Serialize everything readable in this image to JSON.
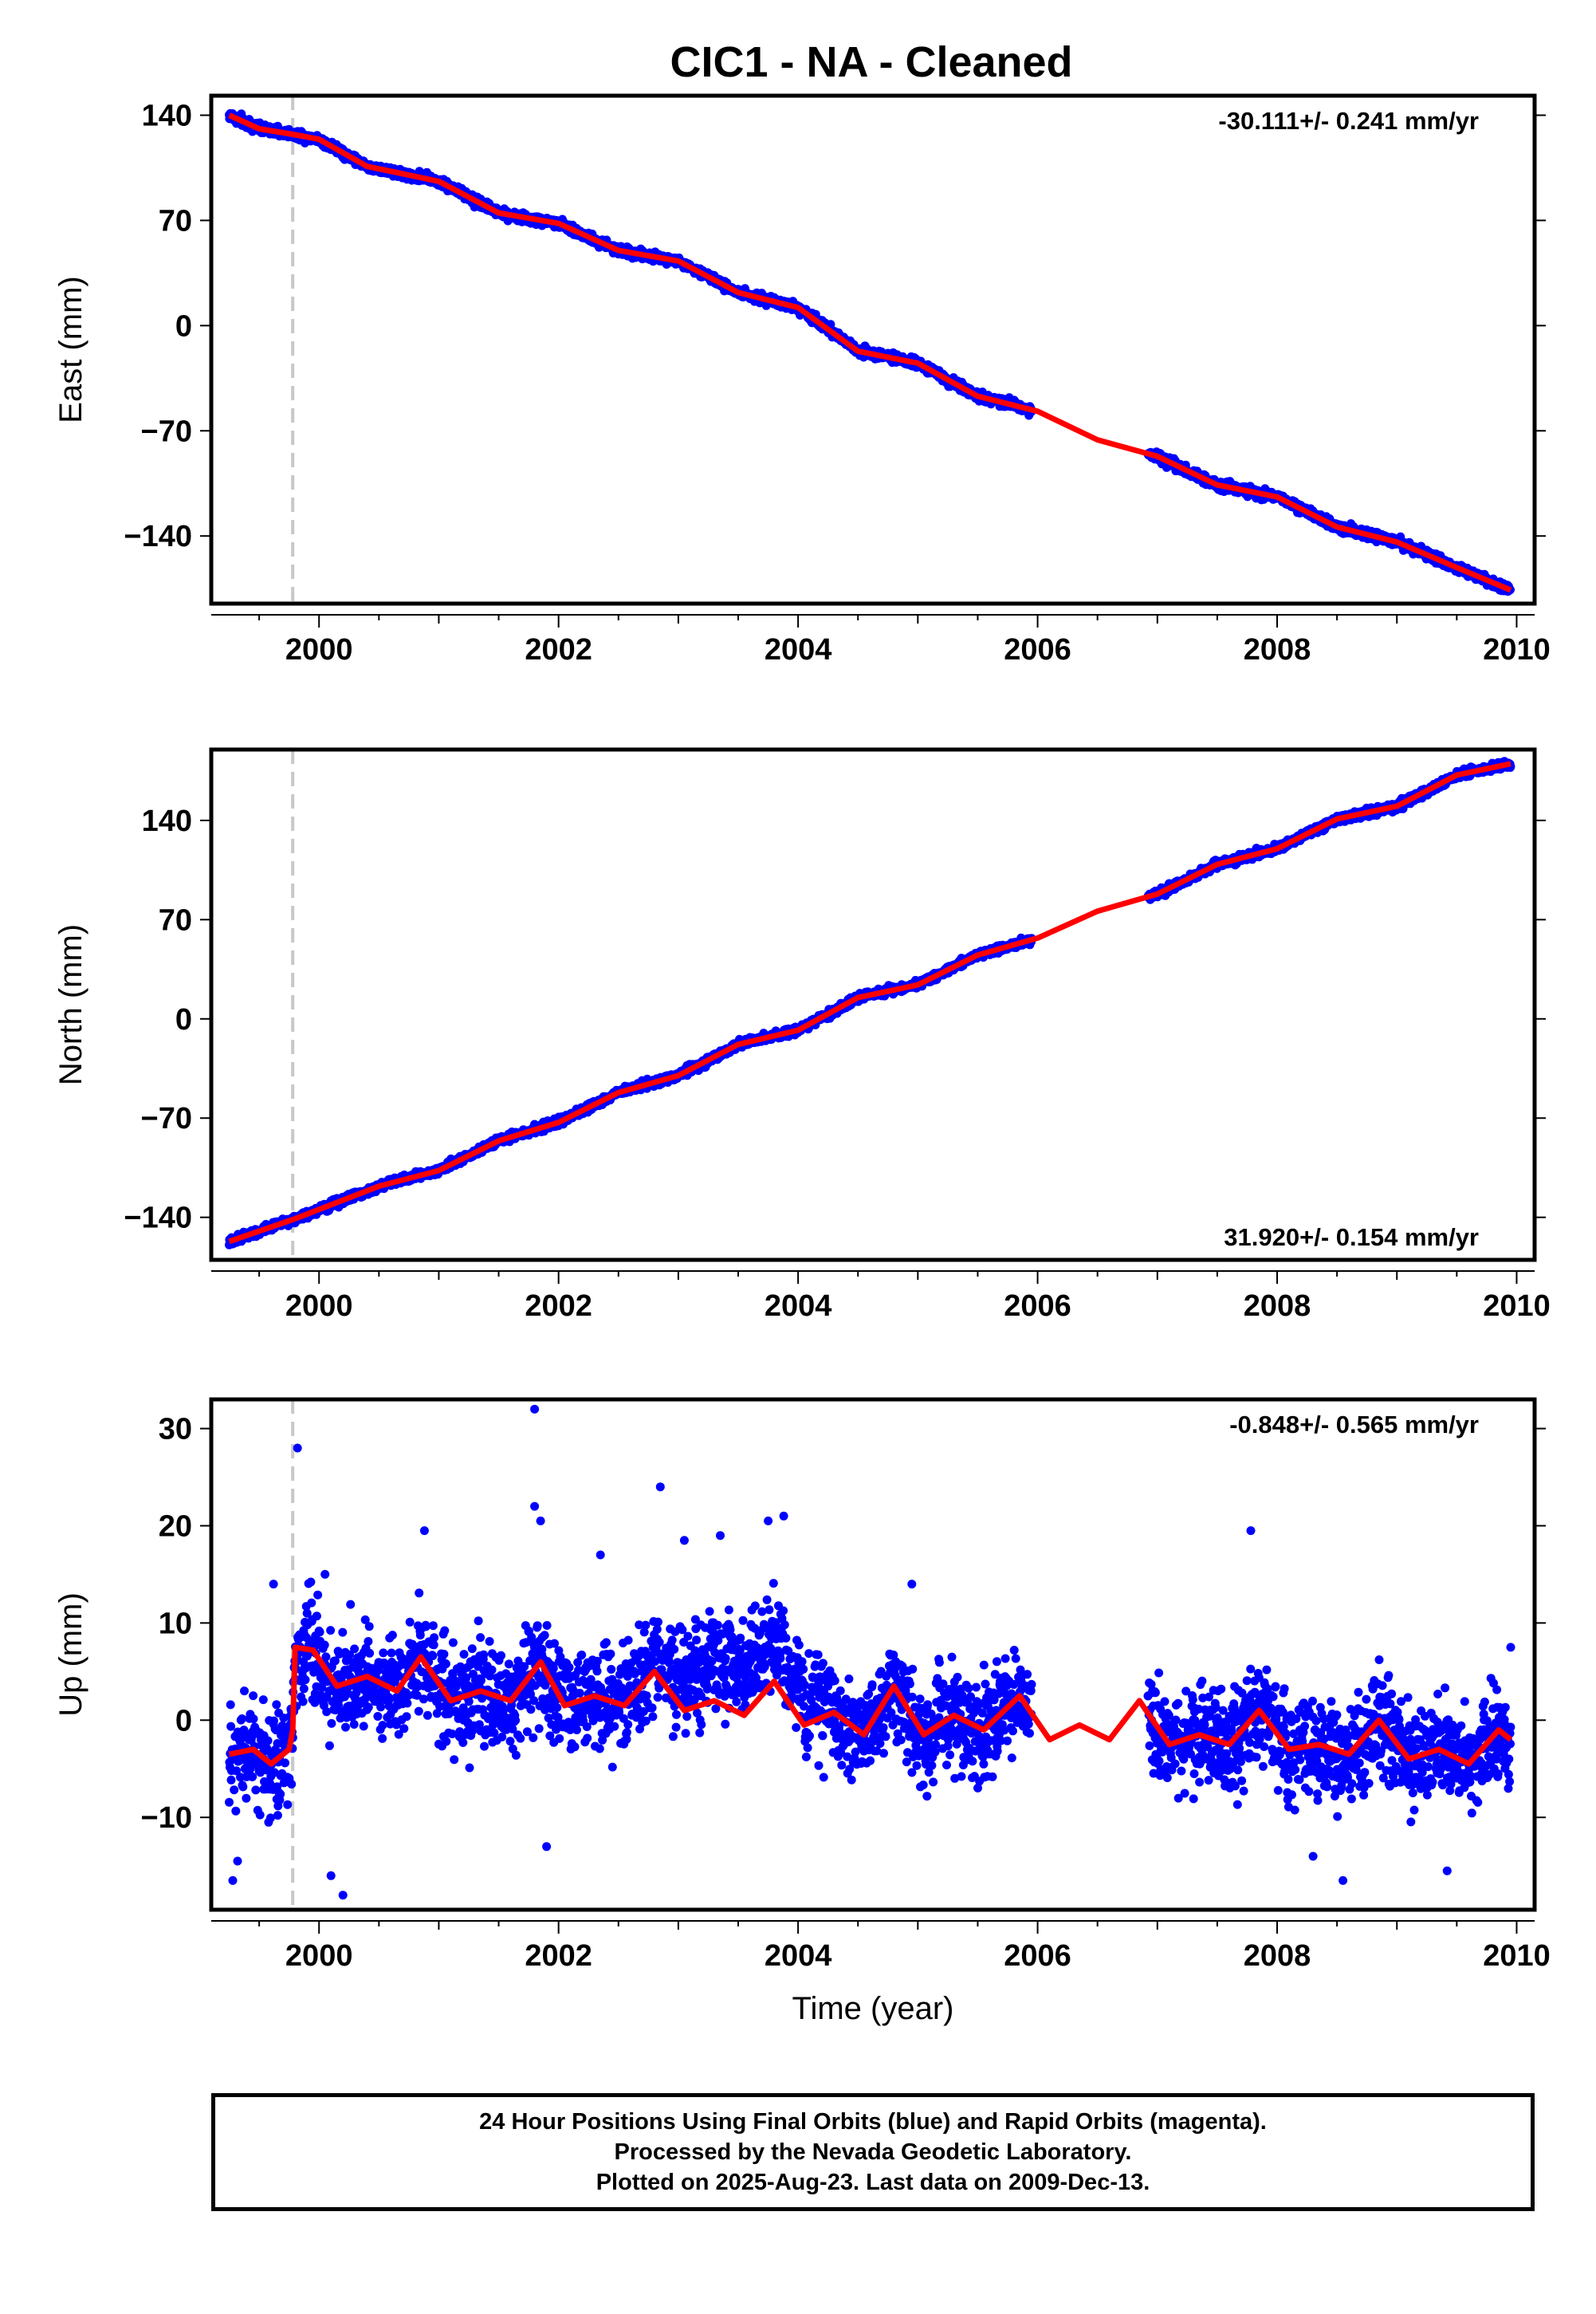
{
  "title": "CIC1  - NA - Cleaned",
  "footer": {
    "line1": "24 Hour Positions Using Final Orbits (blue) and Rapid Orbits (magenta).",
    "line2": "Processed by the Nevada Geodetic Laboratory.",
    "line3": "Plotted on 2025-Aug-23. Last data on 2009-Dec-13."
  },
  "colors": {
    "data": "#0000ff",
    "model": "#ff0000",
    "marker": "#c8c8c8"
  },
  "chart_data": [
    {
      "type": "scatter",
      "ylabel": "East (mm)",
      "xlabel": "",
      "xlim": [
        1999.1,
        2010.15
      ],
      "ylim": [
        -185,
        153
      ],
      "xticks": [
        2000,
        2002,
        2004,
        2006,
        2008,
        2010
      ],
      "yticks": [
        -140,
        -70,
        0,
        70,
        140
      ],
      "rate": "-30.111+/- 0.241 mm/yr",
      "rate_position": "top-right",
      "dashed_line_x": 1999.78,
      "gap": [
        2005.95,
        2006.92
      ],
      "noise": 2.2,
      "trend": [
        [
          1999.25,
          140
        ],
        [
          1999.5,
          131
        ],
        [
          1999.8,
          127
        ],
        [
          2000.0,
          124
        ],
        [
          2000.4,
          106
        ],
        [
          2001.0,
          96
        ],
        [
          2001.5,
          75
        ],
        [
          2002.0,
          68
        ],
        [
          2002.5,
          50
        ],
        [
          2003.0,
          43
        ],
        [
          2003.5,
          22
        ],
        [
          2004.0,
          12
        ],
        [
          2004.5,
          -17
        ],
        [
          2005.0,
          -25
        ],
        [
          2005.5,
          -47
        ],
        [
          2006.0,
          -57
        ],
        [
          2006.5,
          -76
        ],
        [
          2007.0,
          -87
        ],
        [
          2007.5,
          -106
        ],
        [
          2008.0,
          -114
        ],
        [
          2008.5,
          -134
        ],
        [
          2009.0,
          -144
        ],
        [
          2009.5,
          -161
        ],
        [
          2009.95,
          -176
        ]
      ]
    },
    {
      "type": "scatter",
      "ylabel": "North (mm)",
      "xlabel": "",
      "xlim": [
        1999.1,
        2010.15
      ],
      "ylim": [
        -170,
        190
      ],
      "xticks": [
        2000,
        2002,
        2004,
        2006,
        2008,
        2010
      ],
      "yticks": [
        -140,
        -70,
        0,
        70,
        140
      ],
      "rate": "31.920+/- 0.154 mm/yr",
      "rate_position": "bottom-right",
      "dashed_line_x": 1999.78,
      "gap": [
        2005.95,
        2006.92
      ],
      "noise": 2.0,
      "trend": [
        [
          1999.25,
          -157
        ],
        [
          1999.8,
          -141
        ],
        [
          2000.5,
          -118
        ],
        [
          2001.0,
          -107
        ],
        [
          2001.5,
          -86
        ],
        [
          2002.0,
          -73
        ],
        [
          2002.5,
          -52
        ],
        [
          2003.0,
          -40
        ],
        [
          2003.5,
          -18
        ],
        [
          2004.0,
          -8
        ],
        [
          2004.5,
          15
        ],
        [
          2005.0,
          24
        ],
        [
          2005.5,
          45
        ],
        [
          2006.0,
          57
        ],
        [
          2006.5,
          76
        ],
        [
          2007.0,
          88
        ],
        [
          2007.5,
          109
        ],
        [
          2008.0,
          120
        ],
        [
          2008.5,
          141
        ],
        [
          2009.0,
          150
        ],
        [
          2009.5,
          172
        ],
        [
          2009.95,
          180
        ]
      ]
    },
    {
      "type": "scatter",
      "ylabel": "Up (mm)",
      "xlabel": "Time (year)",
      "xlim": [
        1999.1,
        2010.15
      ],
      "ylim": [
        -19.5,
        33
      ],
      "xticks": [
        2000,
        2002,
        2004,
        2006,
        2008,
        2010
      ],
      "yticks": [
        -10,
        0,
        10,
        20,
        30
      ],
      "rate": "-0.848+/- 0.565 mm/yr",
      "rate_position": "top-right",
      "dashed_line_x": 1999.78,
      "gap": [
        2005.95,
        2006.92
      ],
      "noise": 3.6,
      "trend": [
        [
          1999.25,
          -3.5
        ],
        [
          1999.45,
          -3.0
        ],
        [
          1999.6,
          -4.5
        ],
        [
          1999.75,
          -3.0
        ],
        [
          1999.78,
          -1.0
        ],
        [
          1999.8,
          7.5
        ],
        [
          1999.95,
          7.2
        ],
        [
          2000.15,
          3.5
        ],
        [
          2000.4,
          4.5
        ],
        [
          2000.65,
          3.0
        ],
        [
          2000.85,
          6.5
        ],
        [
          2001.1,
          2.0
        ],
        [
          2001.35,
          3.0
        ],
        [
          2001.6,
          2.0
        ],
        [
          2001.85,
          6.0
        ],
        [
          2002.05,
          1.5
        ],
        [
          2002.3,
          2.5
        ],
        [
          2002.55,
          1.5
        ],
        [
          2002.8,
          5.0
        ],
        [
          2003.05,
          1.0
        ],
        [
          2003.3,
          2.0
        ],
        [
          2003.55,
          0.5
        ],
        [
          2003.8,
          4.0
        ],
        [
          2004.05,
          -0.5
        ],
        [
          2004.3,
          0.8
        ],
        [
          2004.55,
          -1.5
        ],
        [
          2004.8,
          3.5
        ],
        [
          2005.05,
          -1.5
        ],
        [
          2005.3,
          0.5
        ],
        [
          2005.55,
          -1.0
        ],
        [
          2005.85,
          2.5
        ],
        [
          2006.1,
          -2.0
        ],
        [
          2006.35,
          -0.5
        ],
        [
          2006.6,
          -2.0
        ],
        [
          2006.85,
          2.0
        ],
        [
          2007.1,
          -2.5
        ],
        [
          2007.35,
          -1.5
        ],
        [
          2007.6,
          -2.5
        ],
        [
          2007.85,
          1.0
        ],
        [
          2008.1,
          -3.0
        ],
        [
          2008.35,
          -2.5
        ],
        [
          2008.6,
          -3.5
        ],
        [
          2008.85,
          0.0
        ],
        [
          2009.1,
          -4.0
        ],
        [
          2009.35,
          -3.0
        ],
        [
          2009.6,
          -4.5
        ],
        [
          2009.85,
          -1.0
        ],
        [
          2009.95,
          -2.0
        ]
      ],
      "outliers": [
        [
          1999.28,
          -16.5
        ],
        [
          1999.32,
          -14.5
        ],
        [
          1999.62,
          14
        ],
        [
          1999.82,
          28
        ],
        [
          1999.9,
          11
        ],
        [
          2000.05,
          15
        ],
        [
          2000.1,
          -16
        ],
        [
          2000.2,
          -18
        ],
        [
          2000.88,
          19.5
        ],
        [
          2001.8,
          32
        ],
        [
          2001.8,
          22
        ],
        [
          2001.85,
          20.5
        ],
        [
          2001.9,
          -13
        ],
        [
          2002.35,
          17
        ],
        [
          2002.85,
          24
        ],
        [
          2003.05,
          18.5
        ],
        [
          2003.35,
          19
        ],
        [
          2003.75,
          20.5
        ],
        [
          2003.88,
          21
        ],
        [
          2004.95,
          14
        ],
        [
          2007.78,
          19.5
        ],
        [
          2008.3,
          -14
        ],
        [
          2008.55,
          -16.5
        ],
        [
          2009.42,
          -15.5
        ],
        [
          2009.95,
          7.5
        ]
      ]
    }
  ]
}
